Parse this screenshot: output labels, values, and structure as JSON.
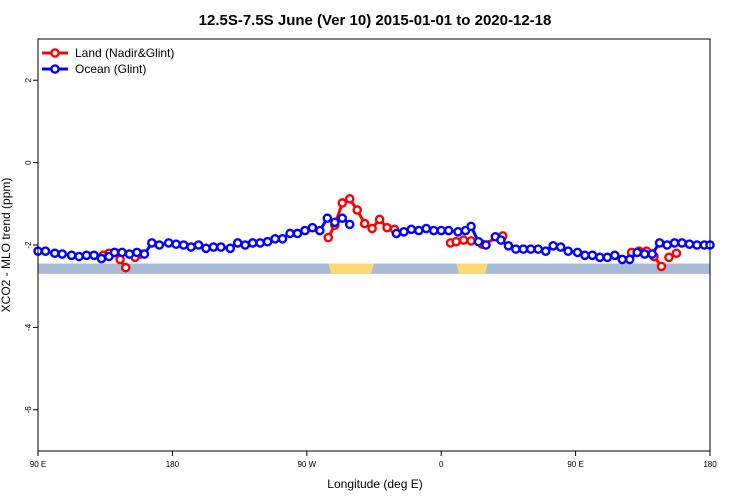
{
  "chart_data": {
    "type": "line",
    "title": "12.5S-7.5S June (Ver 10)   2015-01-01 to 2020-12-18",
    "xlabel": "Longitude (deg E)",
    "ylabel": "XCO2 - MLO trend (ppm)",
    "xlim": [
      90,
      450
    ],
    "ylim": [
      -7,
      3
    ],
    "xticks": [
      {
        "value": 90,
        "label": "90 E"
      },
      {
        "value": 162,
        "label": "180"
      },
      {
        "value": 234,
        "label": "90 W"
      },
      {
        "value": 306,
        "label": "0"
      },
      {
        "value": 378,
        "label": "90 E"
      },
      {
        "value": 450,
        "label": "180"
      }
    ],
    "yticks": [
      {
        "value": 2,
        "label": "2"
      },
      {
        "value": 0,
        "label": "0"
      },
      {
        "value": -2,
        "label": "-2"
      },
      {
        "value": -4,
        "label": "-4"
      },
      {
        "value": -6,
        "label": "-6"
      }
    ],
    "legend_position": "top-left",
    "land_sea_band": {
      "y_top": -2.45,
      "y_bottom": -2.7,
      "ocean_color": "#a7bad6",
      "land_color": "#fdd976",
      "land_segments": [
        [
          245.5,
          270
        ],
        [
          314,
          331
        ]
      ]
    },
    "series": [
      {
        "name": "Land (Nadir&Glint)",
        "color": "#ff0000",
        "segments": [
          [
            [
              125,
              -2.25
            ],
            [
              128,
              -2.2
            ],
            [
              131,
              -2.18
            ],
            [
              134,
              -2.35
            ],
            [
              137,
              -2.55
            ]
          ],
          [
            [
              142,
              -2.3
            ],
            [
              145,
              -2.22
            ]
          ],
          [
            [
              245.5,
              -1.82
            ],
            [
              249,
              -1.52
            ],
            [
              253,
              -0.98
            ],
            [
              257,
              -0.88
            ],
            [
              261,
              -1.15
            ],
            [
              265,
              -1.48
            ],
            [
              269,
              -1.6
            ],
            [
              273,
              -1.38
            ],
            [
              277,
              -1.58
            ],
            [
              281,
              -1.62
            ]
          ],
          [
            [
              311,
              -1.95
            ],
            [
              314,
              -1.92
            ],
            [
              318,
              -1.88
            ],
            [
              322,
              -1.9
            ]
          ],
          [
            [
              328,
              -1.98
            ],
            [
              339,
              -1.78
            ]
          ],
          [
            [
              408,
              -2.18
            ],
            [
              412,
              -2.15
            ],
            [
              416,
              -2.15
            ],
            [
              420,
              -2.28
            ],
            [
              424,
              -2.52
            ]
          ],
          [
            [
              428,
              -2.3
            ],
            [
              432,
              -2.2
            ]
          ]
        ]
      },
      {
        "name": "Ocean (Glint)",
        "color": "#0000ff",
        "segments": [
          [
            [
              90,
              -2.15
            ],
            [
              94,
              -2.15
            ],
            [
              99,
              -2.2
            ],
            [
              103,
              -2.22
            ],
            [
              108,
              -2.25
            ],
            [
              112,
              -2.28
            ],
            [
              116,
              -2.25
            ],
            [
              120,
              -2.25
            ],
            [
              124,
              -2.33
            ],
            [
              128,
              -2.28
            ],
            [
              131,
              -2.18
            ],
            [
              135,
              -2.18
            ],
            [
              139,
              -2.22
            ],
            [
              143,
              -2.18
            ],
            [
              147,
              -2.22
            ],
            [
              151,
              -1.95
            ],
            [
              155,
              -2.0
            ],
            [
              160,
              -1.95
            ],
            [
              164,
              -1.98
            ],
            [
              168,
              -2.0
            ],
            [
              172,
              -2.05
            ],
            [
              176,
              -2.0
            ],
            [
              180,
              -2.08
            ],
            [
              184,
              -2.05
            ],
            [
              188,
              -2.05
            ],
            [
              193,
              -2.08
            ],
            [
              197,
              -1.95
            ],
            [
              201,
              -2.0
            ],
            [
              205,
              -1.95
            ],
            [
              209,
              -1.95
            ],
            [
              213,
              -1.92
            ],
            [
              217,
              -1.85
            ],
            [
              221,
              -1.85
            ],
            [
              225,
              -1.72
            ],
            [
              229,
              -1.72
            ],
            [
              233,
              -1.65
            ],
            [
              237,
              -1.58
            ],
            [
              241,
              -1.65
            ],
            [
              245,
              -1.35
            ],
            [
              249,
              -1.45
            ],
            [
              253,
              -1.35
            ],
            [
              257,
              -1.5
            ]
          ],
          [
            [
              282,
              -1.72
            ],
            [
              286,
              -1.68
            ],
            [
              290,
              -1.62
            ],
            [
              294,
              -1.65
            ],
            [
              298,
              -1.6
            ],
            [
              302,
              -1.65
            ],
            [
              306,
              -1.65
            ],
            [
              310,
              -1.65
            ],
            [
              315,
              -1.68
            ],
            [
              319,
              -1.65
            ]
          ],
          [
            [
              322,
              -1.55
            ],
            [
              326,
              -1.92
            ],
            [
              330,
              -2.0
            ]
          ],
          [
            [
              335,
              -1.8
            ],
            [
              338,
              -1.88
            ],
            [
              342,
              -2.02
            ],
            [
              346,
              -2.1
            ],
            [
              350,
              -2.1
            ],
            [
              354,
              -2.1
            ],
            [
              358,
              -2.1
            ],
            [
              362,
              -2.15
            ],
            [
              366,
              -2.02
            ],
            [
              370,
              -2.05
            ],
            [
              374,
              -2.15
            ],
            [
              379,
              -2.18
            ],
            [
              383,
              -2.25
            ],
            [
              387,
              -2.25
            ],
            [
              391,
              -2.3
            ],
            [
              395,
              -2.3
            ],
            [
              399,
              -2.25
            ],
            [
              403,
              -2.35
            ],
            [
              407,
              -2.35
            ],
            [
              411,
              -2.18
            ],
            [
              415,
              -2.22
            ],
            [
              419,
              -2.22
            ],
            [
              423,
              -1.95
            ],
            [
              427,
              -2.0
            ],
            [
              431,
              -1.95
            ],
            [
              435,
              -1.95
            ],
            [
              439,
              -1.98
            ],
            [
              443,
              -2.0
            ],
            [
              447,
              -2.0
            ],
            [
              450,
              -2.0
            ]
          ]
        ]
      }
    ]
  }
}
